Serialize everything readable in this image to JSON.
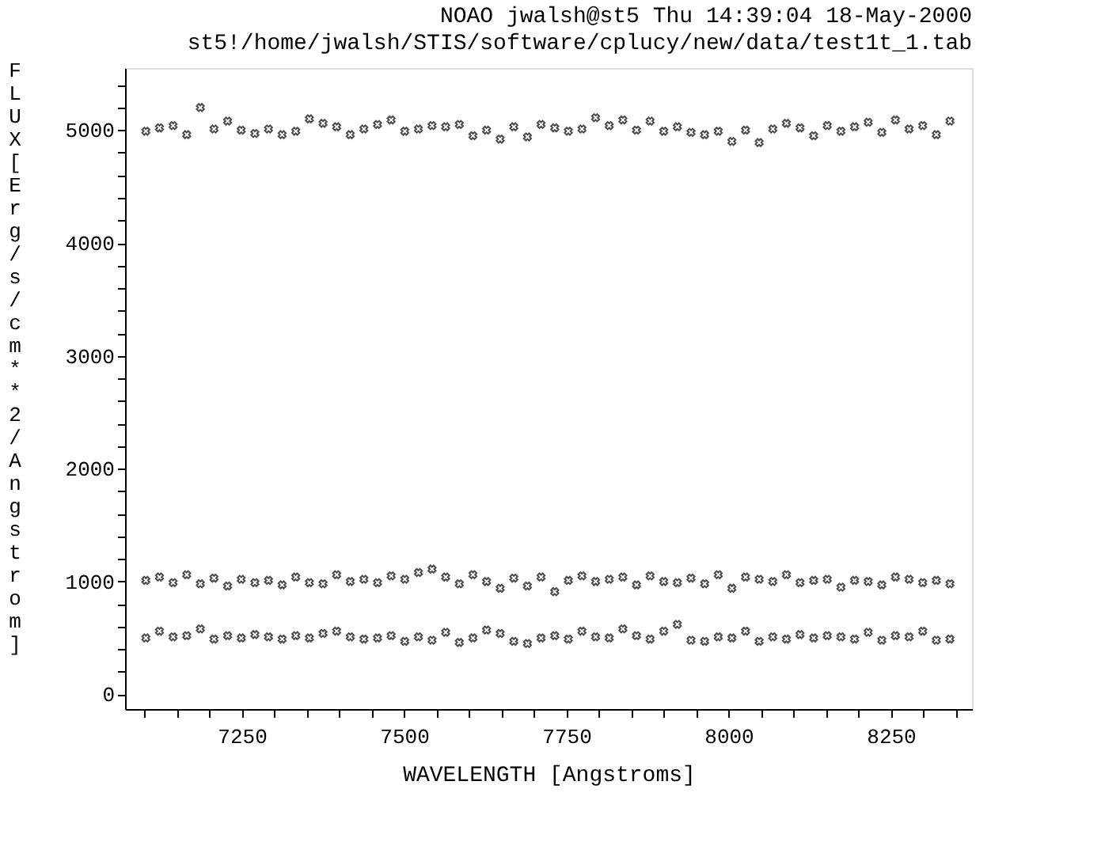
{
  "chart_data": {
    "type": "scatter",
    "title": "NOAO jwalsh@st5 Thu 14:39:04 18-May-2000",
    "subtitle": "st5!/home/jwalsh/STIS/software/cplucy/new/data/test1t_1.tab",
    "xlabel": "WAVELENGTH [Angstroms]",
    "ylabel": "FLUX [Erg/s/cm**2/Angstrom]",
    "x": [
      7102,
      7123,
      7144,
      7165,
      7186,
      7207,
      7228,
      7249,
      7270,
      7291,
      7312,
      7333,
      7354,
      7375,
      7396,
      7417,
      7438,
      7459,
      7480,
      7501,
      7522,
      7543,
      7564,
      7585,
      7606,
      7627,
      7648,
      7669,
      7690,
      7711,
      7732,
      7753,
      7774,
      7795,
      7816,
      7837,
      7858,
      7879,
      7900,
      7921,
      7942,
      7963,
      7984,
      8005,
      8026,
      8047,
      8068,
      8089,
      8110,
      8131,
      8152,
      8173,
      8194,
      8215,
      8236,
      8257,
      8278,
      8299,
      8320,
      8341
    ],
    "series": [
      {
        "color": "#000000",
        "values": [
          4990,
          5020,
          5040,
          4960,
          5200,
          5010,
          5080,
          5000,
          4970,
          5010,
          4960,
          4990,
          5100,
          5060,
          5030,
          4960,
          5010,
          5050,
          5090,
          4990,
          5010,
          5040,
          5030,
          5050,
          4950,
          5000,
          4920,
          5030,
          4940,
          5050,
          5020,
          4990,
          5010,
          5110,
          5040,
          5090,
          5000,
          5080,
          4990,
          5030,
          4980,
          4960,
          4990,
          4900,
          5000,
          4890,
          5010,
          5060,
          5020,
          4950,
          5040,
          4990,
          5030,
          5070,
          4980,
          5090,
          5010,
          5040,
          4960,
          5080
        ]
      },
      {
        "color": "#000000",
        "values": [
          1010,
          1040,
          990,
          1060,
          980,
          1030,
          960,
          1020,
          990,
          1010,
          970,
          1040,
          990,
          980,
          1060,
          1000,
          1020,
          990,
          1050,
          1020,
          1080,
          1110,
          1040,
          980,
          1060,
          1000,
          940,
          1030,
          960,
          1040,
          910,
          1010,
          1050,
          1000,
          1020,
          1040,
          970,
          1050,
          1000,
          990,
          1030,
          980,
          1060,
          940,
          1040,
          1020,
          1000,
          1060,
          990,
          1010,
          1020,
          950,
          1010,
          1000,
          970,
          1040,
          1020,
          990,
          1010,
          980
        ]
      },
      {
        "color": "#000000",
        "values": [
          500,
          560,
          510,
          520,
          580,
          490,
          520,
          500,
          530,
          510,
          490,
          520,
          500,
          540,
          560,
          510,
          490,
          500,
          520,
          470,
          510,
          480,
          550,
          460,
          500,
          570,
          540,
          470,
          450,
          500,
          520,
          490,
          560,
          510,
          500,
          580,
          520,
          490,
          560,
          620,
          480,
          470,
          510,
          500,
          560,
          470,
          510,
          490,
          530,
          500,
          520,
          510,
          490,
          550,
          480,
          520,
          510,
          560,
          480,
          490
        ]
      }
    ],
    "xlim": [
      7070,
      8375
    ],
    "xticks": [
      {
        "value": 7100,
        "label": null
      },
      {
        "value": 7150,
        "label": null
      },
      {
        "value": 7200,
        "label": null
      },
      7250,
      {
        "value": 7300,
        "label": null
      },
      {
        "value": 7350,
        "label": null
      },
      {
        "value": 7400,
        "label": null
      },
      {
        "value": 7450,
        "label": null
      },
      7500,
      {
        "value": 7550,
        "label": null
      },
      {
        "value": 7600,
        "label": null
      },
      {
        "value": 7650,
        "label": null
      },
      {
        "value": 7700,
        "label": null
      },
      7750,
      {
        "value": 7800,
        "label": null
      },
      {
        "value": 7850,
        "label": null
      },
      {
        "value": 7900,
        "label": null
      },
      {
        "value": 7950,
        "label": null
      },
      8000,
      {
        "value": 8050,
        "label": null
      },
      {
        "value": 8100,
        "label": null
      },
      {
        "value": 8150,
        "label": null
      },
      {
        "value": 8200,
        "label": null
      },
      8250,
      {
        "value": 8300,
        "label": null
      },
      {
        "value": 8350,
        "label": null
      }
    ],
    "ylim": [
      -130,
      5550
    ],
    "yticks": [
      0,
      {
        "value": 200,
        "label": null
      },
      {
        "value": 400,
        "label": null
      },
      {
        "value": 600,
        "label": null
      },
      {
        "value": 800,
        "label": null
      },
      1000,
      {
        "value": 1200,
        "label": null
      },
      {
        "value": 1400,
        "label": null
      },
      {
        "value": 1600,
        "label": null
      },
      {
        "value": 1800,
        "label": null
      },
      2000,
      {
        "value": 2200,
        "label": null
      },
      {
        "value": 2400,
        "label": null
      },
      {
        "value": 2600,
        "label": null
      },
      {
        "value": 2800,
        "label": null
      },
      3000,
      {
        "value": 3200,
        "label": null
      },
      {
        "value": 3400,
        "label": null
      },
      {
        "value": 3600,
        "label": null
      },
      {
        "value": 3800,
        "label": null
      },
      4000,
      {
        "value": 4200,
        "label": null
      },
      {
        "value": 4400,
        "label": null
      },
      {
        "value": 4600,
        "label": null
      },
      {
        "value": 4800,
        "label": null
      },
      5000,
      {
        "value": 5200,
        "label": null
      },
      {
        "value": 5400,
        "label": null
      }
    ],
    "grid": false,
    "marker": "cross"
  }
}
